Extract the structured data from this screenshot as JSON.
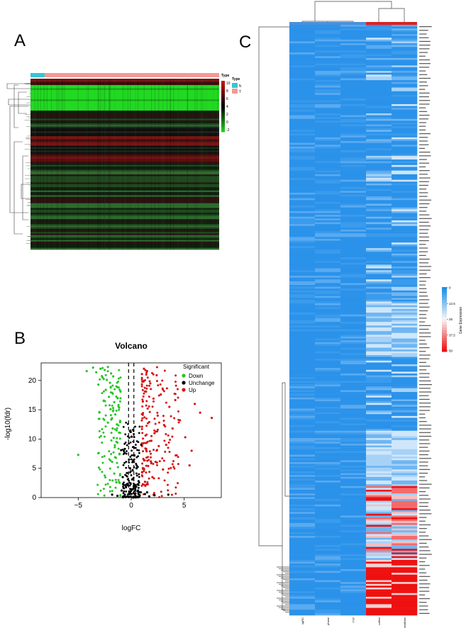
{
  "panels": {
    "a_label": "A",
    "b_label": "B",
    "c_label": "C"
  },
  "chart_data": [
    {
      "panel": "A",
      "type": "heatmap",
      "title": "",
      "annotation": {
        "title": "Type",
        "groups": [
          {
            "name": "N",
            "color": "#33c7d6",
            "columns": 9
          },
          {
            "name": "T",
            "color": "#f29a94",
            "columns": 111
          }
        ]
      },
      "colorbar": {
        "ticks": [
          "10",
          "8",
          "6",
          "4",
          "2",
          "0",
          "-2"
        ],
        "range": [
          -2,
          10
        ],
        "colors": [
          "#22c922",
          "#000000",
          "#c41414"
        ]
      },
      "row_bands": [
        {
          "rows": 4,
          "tone": "red"
        },
        {
          "rows": 16,
          "tone": "green"
        },
        {
          "rows": 10,
          "tone": "mixed"
        },
        {
          "rows": 6,
          "tone": "black"
        },
        {
          "rows": 6,
          "tone": "red"
        },
        {
          "rows": 5,
          "tone": "black"
        },
        {
          "rows": 6,
          "tone": "red"
        },
        {
          "rows": 14,
          "tone": "mixed"
        },
        {
          "rows": 40,
          "tone": "mixed"
        }
      ]
    },
    {
      "panel": "B",
      "type": "scatter",
      "title": "Volcano",
      "xlabel": "logFC",
      "ylabel": "-log10(fdr)",
      "xlim": [
        -8.5,
        8.5
      ],
      "ylim": [
        0,
        23
      ],
      "xticks": [
        -5,
        0,
        5
      ],
      "yticks": [
        0,
        5,
        10,
        15,
        20
      ],
      "fc_cutoff_lines": [
        -1,
        1
      ],
      "legend": {
        "title": "Significant",
        "entries": [
          {
            "name": "Down",
            "color": "#27c427"
          },
          {
            "name": "Unchange",
            "color": "#000000"
          },
          {
            "name": "Up",
            "color": "#d61515"
          }
        ]
      },
      "series": [
        {
          "name": "Down",
          "points": [
            [
              -5.0,
              7.3
            ],
            [
              -4.2,
              21.6
            ],
            [
              -3.6,
              22.2
            ],
            [
              -3.3,
              21.4
            ],
            [
              -3.1,
              19.3
            ],
            [
              -2.9,
              22.0
            ],
            [
              -2.7,
              20.5
            ],
            [
              -2.5,
              21.8
            ],
            [
              -2.4,
              18.4
            ],
            [
              -2.3,
              20.1
            ],
            [
              -2.2,
              22.3
            ],
            [
              -2.1,
              17.2
            ],
            [
              -2.0,
              19.6
            ],
            [
              -1.95,
              15.1
            ],
            [
              -1.9,
              21.2
            ],
            [
              -1.85,
              13.4
            ],
            [
              -1.8,
              17.9
            ],
            [
              -1.75,
              11.8
            ],
            [
              -1.7,
              20.7
            ],
            [
              -1.65,
              10.2
            ],
            [
              -1.6,
              16.3
            ],
            [
              -1.55,
              8.6
            ],
            [
              -1.5,
              14.2
            ],
            [
              -1.45,
              6.8
            ],
            [
              -1.4,
              19.0
            ],
            [
              -1.35,
              12.5
            ],
            [
              -1.3,
              9.4
            ],
            [
              -1.25,
              5.2
            ],
            [
              -1.2,
              15.8
            ],
            [
              -1.15,
              11.1
            ],
            [
              -1.1,
              7.5
            ],
            [
              -1.05,
              3.8
            ],
            [
              -1.05,
              13.1
            ],
            [
              -1.02,
              18.2
            ],
            [
              -1.6,
              4.1
            ],
            [
              -2.6,
              16.5
            ],
            [
              -3.0,
              14.6
            ],
            [
              -1.8,
              6.1
            ],
            [
              -2.2,
              12.8
            ],
            [
              -1.4,
              2.6
            ]
          ]
        },
        {
          "name": "Unchange",
          "points": [
            [
              -0.9,
              1.2
            ],
            [
              -0.6,
              0.5
            ],
            [
              -0.3,
              2.1
            ],
            [
              -0.1,
              0.8
            ],
            [
              0.2,
              1.5
            ],
            [
              0.4,
              0.3
            ],
            [
              0.7,
              2.8
            ],
            [
              0.9,
              0.9
            ],
            [
              -0.8,
              3.5
            ],
            [
              -0.4,
              4.2
            ],
            [
              0.1,
              3.1
            ],
            [
              0.5,
              5.0
            ],
            [
              -0.2,
              6.5
            ],
            [
              0.3,
              7.2
            ],
            [
              -0.7,
              0.2
            ],
            [
              0.8,
              0.4
            ],
            [
              -0.5,
              1.9
            ],
            [
              0.6,
              1.1
            ],
            [
              1.3,
              0.6
            ],
            [
              1.7,
              0.2
            ],
            [
              2.2,
              0.4
            ],
            [
              1.5,
              0.9
            ],
            [
              3.5,
              0.5
            ],
            [
              -1.3,
              0.3
            ],
            [
              -1.8,
              0.5
            ],
            [
              -0.95,
              8.1
            ],
            [
              0.95,
              9.0
            ],
            [
              -0.2,
              0.1
            ],
            [
              0.05,
              10.4
            ],
            [
              -0.05,
              11.2
            ]
          ]
        },
        {
          "name": "Up",
          "points": [
            [
              7.6,
              13.6
            ],
            [
              6.5,
              14.5
            ],
            [
              6.0,
              16.0
            ],
            [
              5.7,
              8.0
            ],
            [
              5.5,
              5.5
            ],
            [
              5.1,
              10.3
            ],
            [
              4.6,
              13.2
            ],
            [
              4.2,
              7.2
            ],
            [
              3.9,
              11.8
            ],
            [
              3.6,
              15.5
            ],
            [
              3.3,
              9.0
            ],
            [
              3.1,
              12.4
            ],
            [
              3.0,
              4.8
            ],
            [
              2.8,
              17.6
            ],
            [
              2.6,
              8.8
            ],
            [
              2.5,
              14.0
            ],
            [
              2.4,
              20.9
            ],
            [
              2.3,
              6.1
            ],
            [
              2.2,
              11.0
            ],
            [
              2.1,
              16.9
            ],
            [
              2.0,
              3.5
            ],
            [
              1.9,
              9.7
            ],
            [
              1.8,
              19.5
            ],
            [
              1.7,
              12.9
            ],
            [
              1.6,
              5.4
            ],
            [
              1.55,
              15.2
            ],
            [
              1.5,
              21.6
            ],
            [
              1.45,
              7.9
            ],
            [
              1.4,
              18.1
            ],
            [
              1.35,
              10.6
            ],
            [
              1.3,
              2.7
            ],
            [
              1.25,
              13.7
            ],
            [
              1.2,
              22.0
            ],
            [
              1.15,
              6.6
            ],
            [
              1.1,
              16.4
            ],
            [
              1.08,
              9.2
            ],
            [
              1.05,
              19.8
            ],
            [
              1.03,
              4.3
            ],
            [
              1.02,
              12.1
            ],
            [
              1.01,
              21.1
            ]
          ]
        }
      ]
    },
    {
      "panel": "C",
      "type": "heatmap",
      "colorbar": {
        "title": "Gene Expression",
        "ticks": [
          "0",
          "12.5",
          "25",
          "37.5",
          "50"
        ],
        "range": [
          0,
          50
        ],
        "colors": [
          "#1e8fe6",
          "#f7f7f7",
          "#ee1111"
        ]
      },
      "top_annotation_colors": [
        "#4a90d9",
        "#4a90d9",
        "#4a90d9",
        "#e02020",
        "#e02020"
      ],
      "columns": [
        "sgRC",
        "phase",
        "TTP",
        "coffee",
        "healthier"
      ],
      "row_bands": [
        {
          "rows": 60,
          "tone": "blue"
        },
        {
          "rows": 30,
          "tone": "blue"
        },
        {
          "rows": 60,
          "tone": "blue"
        },
        {
          "rows": 30,
          "tone": "lightblue"
        },
        {
          "rows": 40,
          "tone": "blue"
        },
        {
          "rows": 30,
          "tone": "lightblue"
        },
        {
          "rows": 40,
          "tone": "mixed"
        },
        {
          "rows": 30,
          "tone": "red"
        }
      ]
    }
  ]
}
